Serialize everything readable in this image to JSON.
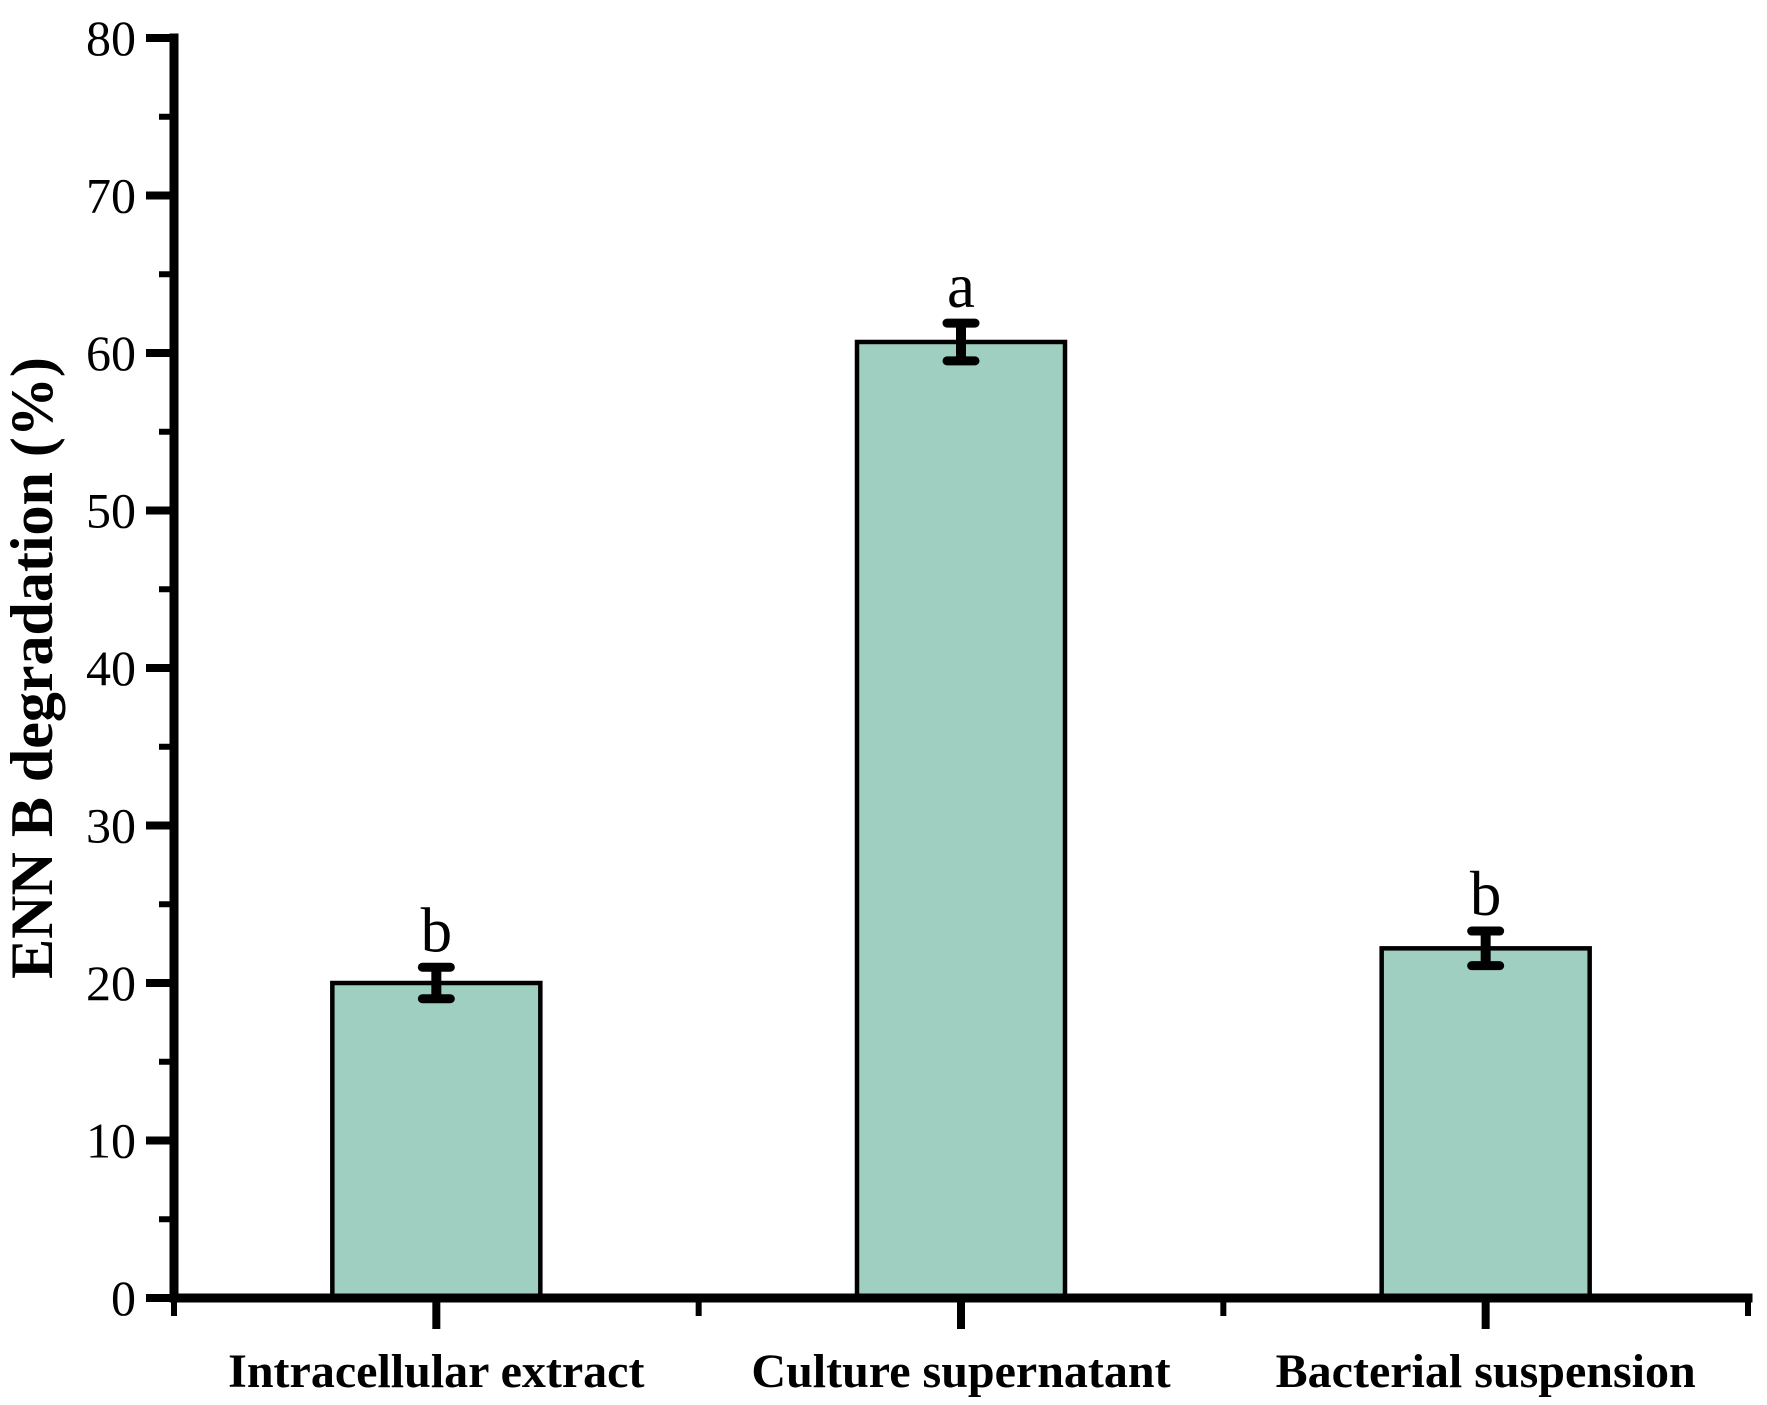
{
  "chart_data": {
    "type": "bar",
    "title": "",
    "categories": [
      "Intracellular extract",
      "Culture supernatant",
      "Bacterial suspension"
    ],
    "values": [
      20.0,
      60.7,
      22.2
    ],
    "errors": [
      1.0,
      1.2,
      1.1
    ],
    "sig_letters": [
      "b",
      "a",
      "b"
    ],
    "xlabel": "",
    "ylabel": "ENN B degradation (%)",
    "ylim": [
      0,
      80
    ],
    "y_major_step": 10,
    "y_minor_step": 5,
    "y_tick_labels": [
      "0",
      "10",
      "20",
      "30",
      "40",
      "50",
      "60",
      "70",
      "80"
    ],
    "grid": false,
    "legend_position": "none",
    "colors": {
      "bar_fill": "#9fcfc1",
      "bar_stroke": "#000000",
      "axis": "#000000",
      "error_bar": "#000000",
      "text": "#000000",
      "background": "#ffffff"
    }
  }
}
